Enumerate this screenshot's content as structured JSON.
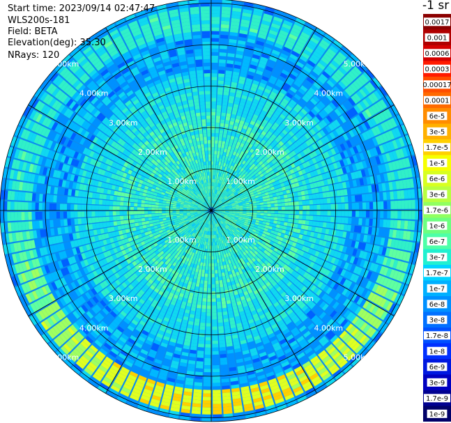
{
  "info": {
    "start_time": "Start time: 2023/09/14 02:47:47",
    "instrument": "WLS200s-181",
    "field": "Field: BETA",
    "elevation": "Elevation(deg): 35.30",
    "nrays": "NRays: 120"
  },
  "unit_label": "-1 sr",
  "chart_data": {
    "type": "heatmap",
    "projection": "polar (PPI scan)",
    "field": "BETA",
    "n_rays": 120,
    "range_rings_km": [
      1,
      2,
      3,
      4,
      5
    ],
    "ring_labels": [
      "1.00km",
      "2.00km",
      "3.00km",
      "4.00km",
      "5.00km"
    ],
    "colorbar": {
      "labels": [
        "0.0017",
        "0.001",
        "0.0006",
        "0.0003",
        "0.00017",
        "0.0001",
        "6e-5",
        "3e-5",
        "1.7e-5",
        "1e-5",
        "6e-6",
        "3e-6",
        "1.7e-6",
        "1e-6",
        "6e-7",
        "3e-7",
        "1.7e-7",
        "1e-7",
        "6e-8",
        "3e-8",
        "1.7e-8",
        "1e-8",
        "6e-9",
        "3e-9",
        "1.7e-9",
        "1e-9"
      ],
      "colors": [
        "#8b0000",
        "#b00000",
        "#d40000",
        "#ff1a00",
        "#ff4d00",
        "#ff6a00",
        "#ff8c00",
        "#ffb000",
        "#ffd000",
        "#f6ff00",
        "#d8ff20",
        "#b8ff40",
        "#90ff60",
        "#6cff80",
        "#4dffa8",
        "#20f0d0",
        "#00d4ff",
        "#00b0ff",
        "#0090ff",
        "#0070ff",
        "#0050ff",
        "#0030ff",
        "#0018e0",
        "#0000c0",
        "#000090",
        "#000068"
      ]
    },
    "description_values": {
      "inner_region_typical": "1e-7",
      "aerosol_ring_band_km": [
        4.3,
        4.9
      ],
      "aerosol_ring_typical": "1e-6",
      "outer_region_typical": "3e-8"
    }
  }
}
